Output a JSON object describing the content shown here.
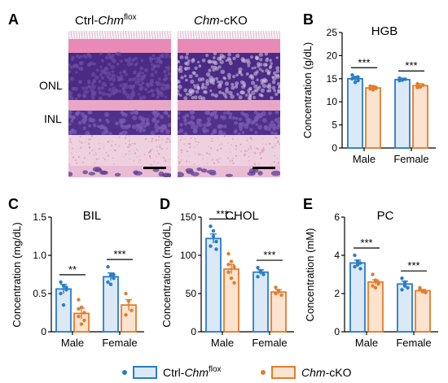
{
  "panel_a": {
    "label": "A",
    "left_title": {
      "prefix": "Ctrl-",
      "gene": "Chm",
      "superscript": "flox"
    },
    "right_title": {
      "gene": "Chm",
      "suffix": "-cKO"
    },
    "layer_labels": [
      "ONL",
      "INL"
    ],
    "colors": {
      "stain_pink": "#e7a8c6",
      "nuclei_purple": "#3f1f78",
      "scale_bar": "#000000"
    }
  },
  "legend": {
    "ctrl": {
      "prefix": "Ctrl-",
      "gene": "Chm",
      "superscript": "flox"
    },
    "cko": {
      "gene": "Chm",
      "suffix": "-cKO"
    }
  },
  "colors": {
    "ctrl_edge": "#2a7cc7",
    "ctrl_fill": "#dbe9f6",
    "cko_edge": "#e07d2e",
    "cko_fill": "#fbe3cf"
  },
  "chart_data": [
    {
      "panel": "B",
      "type": "bar",
      "title": "HGB",
      "ylabel": "Concentration (g/dL)",
      "ylim": [
        0,
        25
      ],
      "yticks": [
        "0",
        "5",
        "10",
        "15",
        "20",
        "25"
      ],
      "ytick_values": [
        0,
        5,
        10,
        15,
        20,
        25
      ],
      "categories": [
        "Male",
        "Female"
      ],
      "series": [
        {
          "group": "ctrl",
          "values": [
            15.0,
            14.8
          ],
          "errors": [
            0.5,
            0.3
          ],
          "points": [
            [
              15.8,
              15.2,
              14.6,
              15.0,
              14.2,
              15.4
            ],
            [
              15.1,
              14.7,
              14.9,
              14.6
            ]
          ]
        },
        {
          "group": "cko",
          "values": [
            13.0,
            13.5
          ],
          "errors": [
            0.4,
            0.4
          ],
          "points": [
            [
              13.4,
              12.6,
              13.1,
              12.8,
              13.3,
              12.9
            ],
            [
              13.9,
              13.2,
              13.6,
              13.1
            ]
          ]
        }
      ],
      "significance": [
        "***",
        "***"
      ]
    },
    {
      "panel": "C",
      "type": "bar",
      "title": "BIL",
      "ylabel": "Concentration (mg/dL)",
      "ylim": [
        0,
        1.5
      ],
      "yticks": [
        "0",
        "0.5",
        "1.0",
        "1.5"
      ],
      "ytick_values": [
        0,
        0.5,
        1.0,
        1.5
      ],
      "categories": [
        "Male",
        "Female"
      ],
      "series": [
        {
          "group": "ctrl",
          "values": [
            0.56,
            0.72
          ],
          "errors": [
            0.06,
            0.05
          ],
          "points": [
            [
              0.65,
              0.6,
              0.55,
              0.5,
              0.35,
              0.58
            ],
            [
              0.85,
              0.74,
              0.7,
              0.65,
              0.62,
              0.75
            ]
          ]
        },
        {
          "group": "cko",
          "values": [
            0.24,
            0.35
          ],
          "errors": [
            0.07,
            0.07
          ],
          "points": [
            [
              0.42,
              0.32,
              0.25,
              0.2,
              0.1,
              0.15,
              0.3
            ],
            [
              0.5,
              0.4,
              0.28,
              0.22
            ]
          ]
        }
      ],
      "significance": [
        "**",
        "***"
      ]
    },
    {
      "panel": "D",
      "type": "bar",
      "title": "CHOL",
      "ylabel": "Concentration (mg/dL)",
      "ylim": [
        0,
        150
      ],
      "yticks": [
        "0",
        "50",
        "100",
        "150"
      ],
      "ytick_values": [
        0,
        50,
        100,
        150
      ],
      "categories": [
        "Male",
        "Female"
      ],
      "series": [
        {
          "group": "ctrl",
          "values": [
            122,
            78
          ],
          "errors": [
            6,
            3
          ],
          "points": [
            [
              138,
              125,
              118,
              112,
              132,
              108
            ],
            [
              84,
              78,
              75,
              72,
              80
            ]
          ]
        },
        {
          "group": "cko",
          "values": [
            82,
            52
          ],
          "errors": [
            6,
            3
          ],
          "points": [
            [
              102,
              92,
              85,
              78,
              70,
              64,
              88
            ],
            [
              58,
              54,
              48,
              50
            ]
          ]
        }
      ],
      "significance": [
        "***",
        "***"
      ]
    },
    {
      "panel": "E",
      "type": "bar",
      "title": "PC",
      "ylabel": "Concentration (mM)",
      "ylim": [
        0,
        6
      ],
      "yticks": [
        "0",
        "2",
        "4",
        "6"
      ],
      "ytick_values": [
        0,
        2,
        4,
        6
      ],
      "categories": [
        "Male",
        "Female"
      ],
      "series": [
        {
          "group": "ctrl",
          "values": [
            3.6,
            2.5
          ],
          "errors": [
            0.15,
            0.15
          ],
          "points": [
            [
              4.0,
              3.7,
              3.6,
              3.4,
              3.5,
              3.3
            ],
            [
              2.8,
              2.6,
              2.3,
              2.2,
              2.4
            ]
          ]
        },
        {
          "group": "cko",
          "values": [
            2.6,
            2.15
          ],
          "errors": [
            0.12,
            0.06
          ],
          "points": [
            [
              3.0,
              2.7,
              2.5,
              2.4,
              2.3,
              2.6
            ],
            [
              2.3,
              2.1,
              2.05,
              2.2
            ]
          ]
        }
      ],
      "significance": [
        "***",
        "***"
      ]
    }
  ]
}
